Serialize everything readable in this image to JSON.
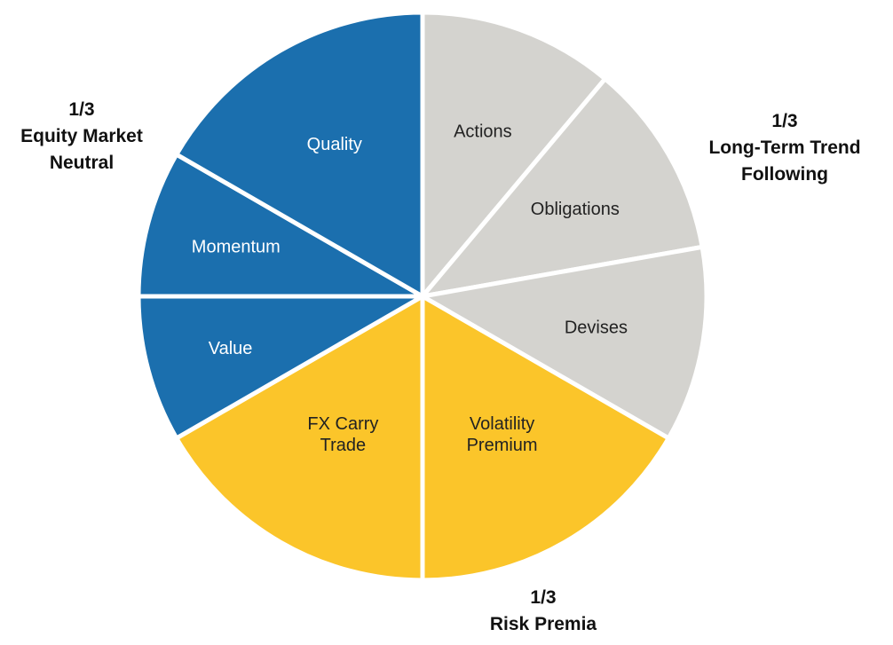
{
  "chart_data": {
    "type": "pie",
    "title": "",
    "groups": [
      {
        "name": "Long-Term Trend Following",
        "share_label": "1/3",
        "label_lines": [
          "Long-Term Trend",
          "Following"
        ],
        "color": "#D4D3CF",
        "text_color": "#222222",
        "slices": [
          {
            "name": "Actions",
            "lines": [
              "Actions"
            ],
            "value": 11.11
          },
          {
            "name": "Obligations",
            "lines": [
              "Obligations"
            ],
            "value": 11.11
          },
          {
            "name": "Devises",
            "lines": [
              "Devises"
            ],
            "value": 11.11
          }
        ]
      },
      {
        "name": "Risk Premia",
        "share_label": "1/3",
        "label_lines": [
          "Risk Premia"
        ],
        "color": "#FBC52A",
        "text_color": "#222222",
        "slices": [
          {
            "name": "Volatility Premium",
            "lines": [
              "Volatility",
              "Premium"
            ],
            "value": 16.67
          },
          {
            "name": "FX Carry Trade",
            "lines": [
              "FX Carry",
              "Trade"
            ],
            "value": 16.67
          }
        ]
      },
      {
        "name": "Equity Market Neutral",
        "share_label": "1/3",
        "label_lines": [
          "Equity Market",
          "Neutral"
        ],
        "color": "#1B6FAE",
        "text_color": "#FFFFFF",
        "slices": [
          {
            "name": "Value",
            "lines": [
              "Value"
            ],
            "value": 8.33
          },
          {
            "name": "Momentum",
            "lines": [
              "Momentum"
            ],
            "value": 8.33
          },
          {
            "name": "Quality",
            "lines": [
              "Quality"
            ],
            "value": 16.67
          }
        ]
      }
    ],
    "start_direction": "12 o'clock",
    "direction": "clockwise",
    "legend": "none"
  }
}
